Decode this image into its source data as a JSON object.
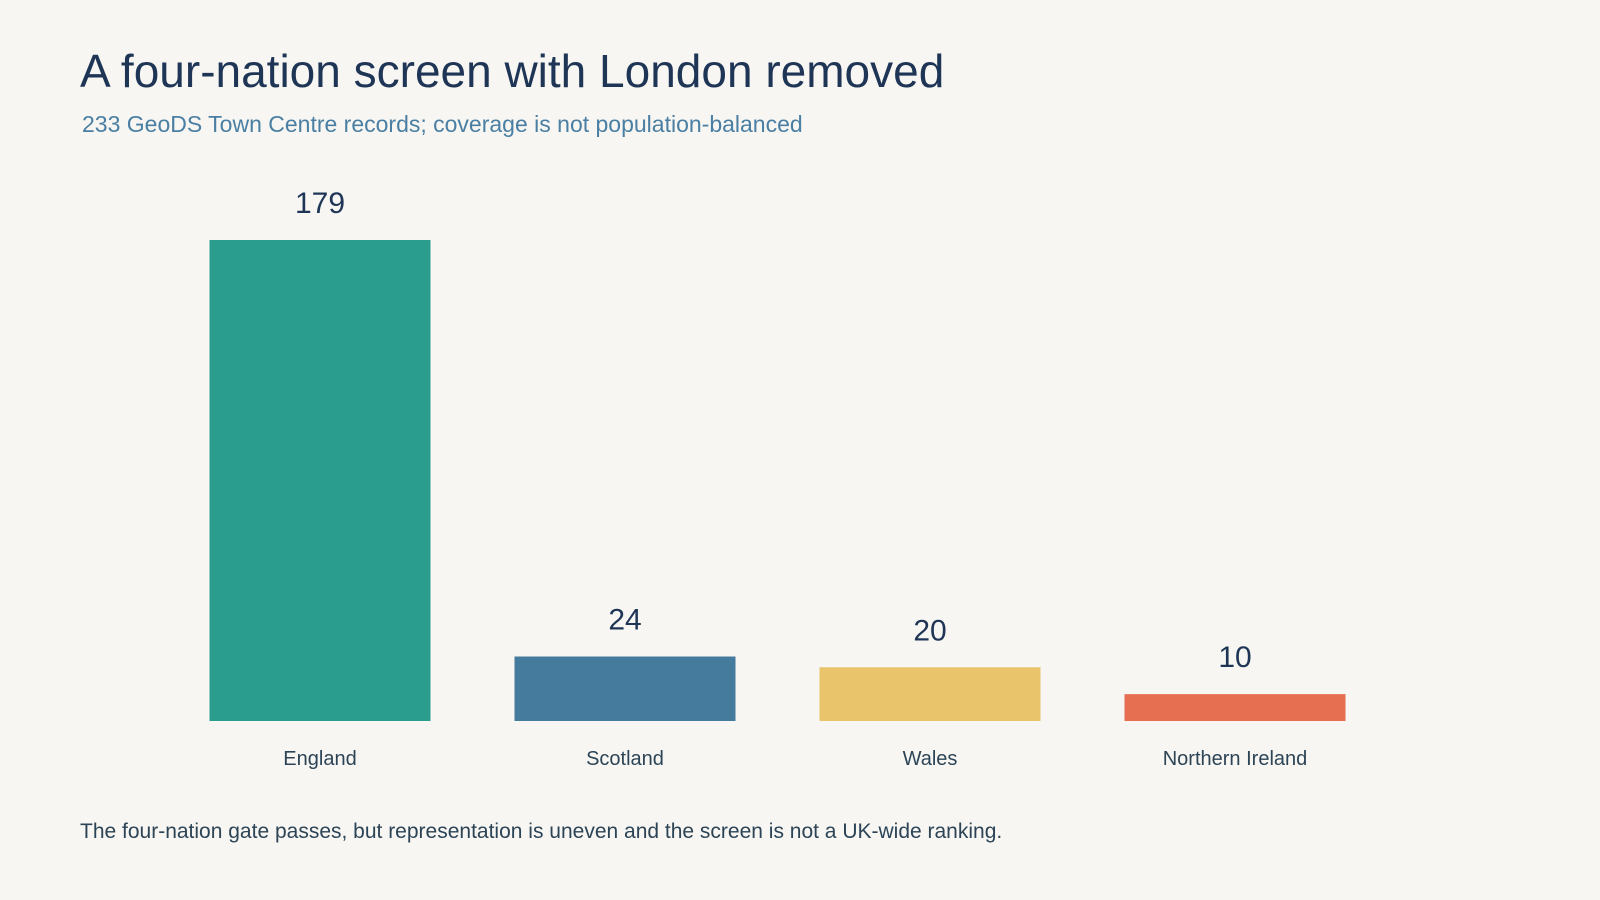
{
  "title": "A four-nation screen with London removed",
  "subtitle": "233 GeoDS Town Centre records; coverage is not population-balanced",
  "footnote": "The four-nation gate passes, but representation is uneven and the screen is not a UK-wide ranking.",
  "chart_data": {
    "type": "bar",
    "categories": [
      "England",
      "Scotland",
      "Wales",
      "Northern Ireland"
    ],
    "values": [
      179,
      24,
      20,
      10
    ],
    "colors": [
      "#2a9d8f",
      "#457b9d",
      "#e9c46a",
      "#e76f51"
    ],
    "value_label_color": "#1f3556",
    "category_label_color": "#2c4456",
    "grid": false,
    "legend": "none",
    "ylim": [
      0,
      179
    ]
  }
}
